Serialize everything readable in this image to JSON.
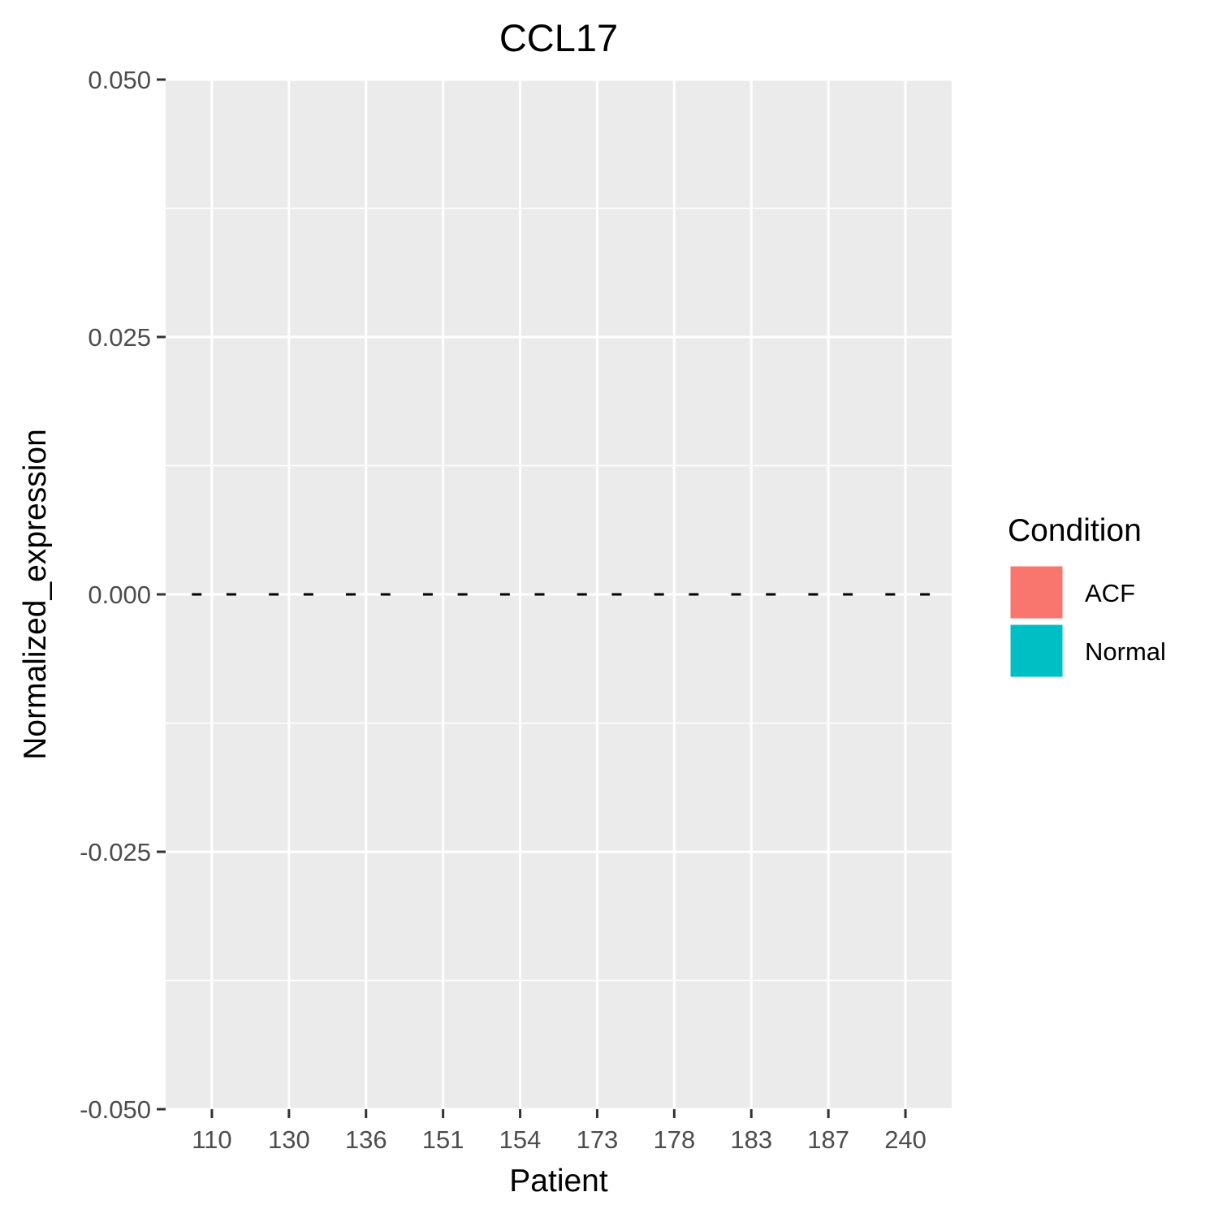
{
  "chart_data": {
    "type": "bar",
    "title": "CCL17",
    "xlabel": "Patient",
    "ylabel": "Normalized_expression",
    "categories": [
      "110",
      "130",
      "136",
      "151",
      "154",
      "173",
      "178",
      "183",
      "187",
      "240"
    ],
    "series": [
      {
        "name": "ACF",
        "color": "#F8766D",
        "values": [
          0,
          0,
          0,
          0,
          0,
          0,
          0,
          0,
          0,
          0
        ]
      },
      {
        "name": "Normal",
        "color": "#00BFC4",
        "values": [
          0,
          0,
          0,
          0,
          0,
          0,
          0,
          0,
          0,
          0
        ]
      }
    ],
    "ylim": [
      -0.05,
      0.05
    ],
    "yticks": [
      "0.050",
      "0.025",
      "0.000",
      "-0.025",
      "-0.050"
    ],
    "grid": true,
    "legend": {
      "title": "Condition",
      "position": "right"
    },
    "panel_background": "#EBEBEB",
    "bar_outline": "#000000",
    "bar_outline_style": "dashed"
  }
}
